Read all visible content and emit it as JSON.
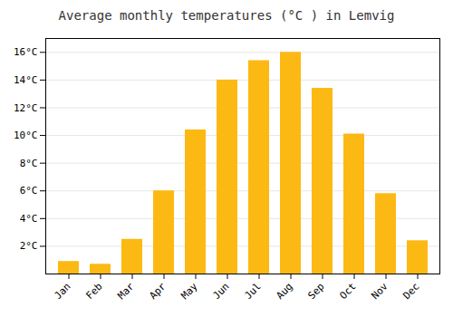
{
  "chart_data": {
    "type": "bar",
    "title": "Average monthly temperatures (°C ) in Lemvig",
    "categories": [
      "Jan",
      "Feb",
      "Mar",
      "Apr",
      "May",
      "Jun",
      "Jul",
      "Aug",
      "Sep",
      "Oct",
      "Nov",
      "Dec"
    ],
    "values": [
      0.9,
      0.7,
      2.5,
      6.0,
      10.4,
      14.0,
      15.4,
      16.0,
      13.4,
      10.1,
      5.8,
      2.4
    ],
    "color": "#FDB913",
    "ylim": [
      0,
      17
    ],
    "yticks": [
      {
        "value": 2,
        "label": "2°C"
      },
      {
        "value": 4,
        "label": "4°C"
      },
      {
        "value": 6,
        "label": "6°C"
      },
      {
        "value": 8,
        "label": "8°C"
      },
      {
        "value": 10,
        "label": "10°C"
      },
      {
        "value": 12,
        "label": "12°C"
      },
      {
        "value": 14,
        "label": "14°C"
      },
      {
        "value": 16,
        "label": "16°C"
      }
    ],
    "grid": true
  }
}
